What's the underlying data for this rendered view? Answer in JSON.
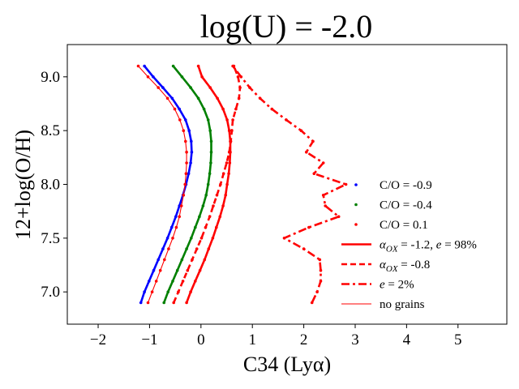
{
  "chart_data": {
    "type": "line",
    "title": "log(U) = -2.0",
    "xlabel": "C34 (Lyα)",
    "ylabel": "12+log(O/H)",
    "xlim": [
      -2.6,
      5.95
    ],
    "ylim": [
      6.7,
      9.3
    ],
    "xticks": [
      -2,
      -1,
      0,
      1,
      2,
      3,
      4,
      5
    ],
    "xtick_labels": [
      "−2",
      "−1",
      "0",
      "1",
      "2",
      "3",
      "4",
      "5"
    ],
    "yticks": [
      7.0,
      7.5,
      8.0,
      8.5,
      9.0
    ],
    "ytick_labels": [
      "7.0",
      "7.5",
      "8.0",
      "8.5",
      "9.0"
    ],
    "grid": false,
    "legend_position": "lower-right",
    "legend": [
      {
        "label": "C/O = -0.9",
        "kind": "marker",
        "color": "#0000ff"
      },
      {
        "label": "C/O = -0.4",
        "kind": "marker",
        "color": "#008000"
      },
      {
        "label": "C/O = 0.1",
        "kind": "marker",
        "color": "#ff0000"
      },
      {
        "label_pre": "α",
        "label_sub": "OX",
        "label_post": " = -1.2, ",
        "label_italic": "e",
        "label_end": " = 98%",
        "kind": "solid",
        "color": "#ff0000"
      },
      {
        "label_pre": "α",
        "label_sub": "OX",
        "label_post": " = -0.8",
        "kind": "dashed",
        "color": "#ff0000"
      },
      {
        "label_italic": "e",
        "label_end": " = 2%",
        "kind": "dashdot",
        "color": "#ff0000"
      },
      {
        "label": "no grains",
        "kind": "thin",
        "color": "#ff0000"
      }
    ],
    "y": [
      6.9,
      7.0,
      7.1,
      7.2,
      7.3,
      7.4,
      7.5,
      7.6,
      7.7,
      7.8,
      7.9,
      8.0,
      8.1,
      8.2,
      8.3,
      8.4,
      8.5,
      8.6,
      8.7,
      8.8,
      8.9,
      9.0,
      9.1
    ],
    "series": [
      {
        "name": "C/O = -0.9 (αOX = -1.2, e = 98%)",
        "color": "#0000ff",
        "style": "solid",
        "width": 2.6,
        "x": [
          -1.17,
          -1.1,
          -1.01,
          -0.92,
          -0.83,
          -0.74,
          -0.65,
          -0.57,
          -0.49,
          -0.42,
          -0.35,
          -0.29,
          -0.24,
          -0.2,
          -0.18,
          -0.19,
          -0.23,
          -0.3,
          -0.42,
          -0.56,
          -0.74,
          -0.93,
          -1.1
        ]
      },
      {
        "name": "C/O = -0.4 (αOX = -1.2, e = 98%)",
        "color": "#008000",
        "style": "solid",
        "width": 2.6,
        "x": [
          -0.72,
          -0.64,
          -0.55,
          -0.46,
          -0.37,
          -0.28,
          -0.19,
          -0.11,
          -0.03,
          0.04,
          0.1,
          0.14,
          0.17,
          0.19,
          0.2,
          0.2,
          0.18,
          0.14,
          0.06,
          -0.05,
          -0.2,
          -0.37,
          -0.54
        ]
      },
      {
        "name": "C/O = 0.1 (αOX = -1.2, e = 98%)",
        "color": "#ff0000",
        "style": "solid",
        "width": 2.6,
        "x": [
          -0.28,
          -0.2,
          -0.11,
          -0.02,
          0.07,
          0.15,
          0.23,
          0.3,
          0.37,
          0.43,
          0.48,
          0.51,
          0.54,
          0.56,
          0.57,
          0.57,
          0.55,
          0.51,
          0.43,
          0.32,
          0.18,
          0.02,
          -0.05
        ]
      },
      {
        "name": "C/O = 0.1 (αOX = -0.8)",
        "color": "#ff0000",
        "style": "dashed",
        "width": 2.6,
        "x": [
          -0.53,
          -0.44,
          -0.35,
          -0.26,
          -0.17,
          -0.08,
          0.01,
          0.09,
          0.17,
          0.24,
          0.31,
          0.38,
          0.44,
          0.5,
          0.55,
          0.58,
          0.6,
          0.62,
          0.68,
          0.74,
          0.76,
          0.72,
          0.64
        ]
      },
      {
        "name": "C/O = 0.1 (e = 2%)",
        "color": "#ff0000",
        "style": "dashdot",
        "width": 2.6,
        "x": [
          2.16,
          2.26,
          2.33,
          2.33,
          2.31,
          2.0,
          1.62,
          2.1,
          2.68,
          2.42,
          2.38,
          2.82,
          2.2,
          2.38,
          2.05,
          2.18,
          1.95,
          1.66,
          1.38,
          1.15,
          0.95,
          0.78,
          0.62
        ]
      },
      {
        "name": "C/O = 0.1 (no grains)",
        "color": "#ff0000",
        "style": "solid",
        "width": 1.1,
        "x": [
          -1.03,
          -0.95,
          -0.87,
          -0.79,
          -0.71,
          -0.63,
          -0.55,
          -0.48,
          -0.42,
          -0.38,
          -0.34,
          -0.31,
          -0.29,
          -0.28,
          -0.28,
          -0.3,
          -0.34,
          -0.41,
          -0.51,
          -0.65,
          -0.83,
          -1.03,
          -1.22
        ]
      }
    ]
  }
}
